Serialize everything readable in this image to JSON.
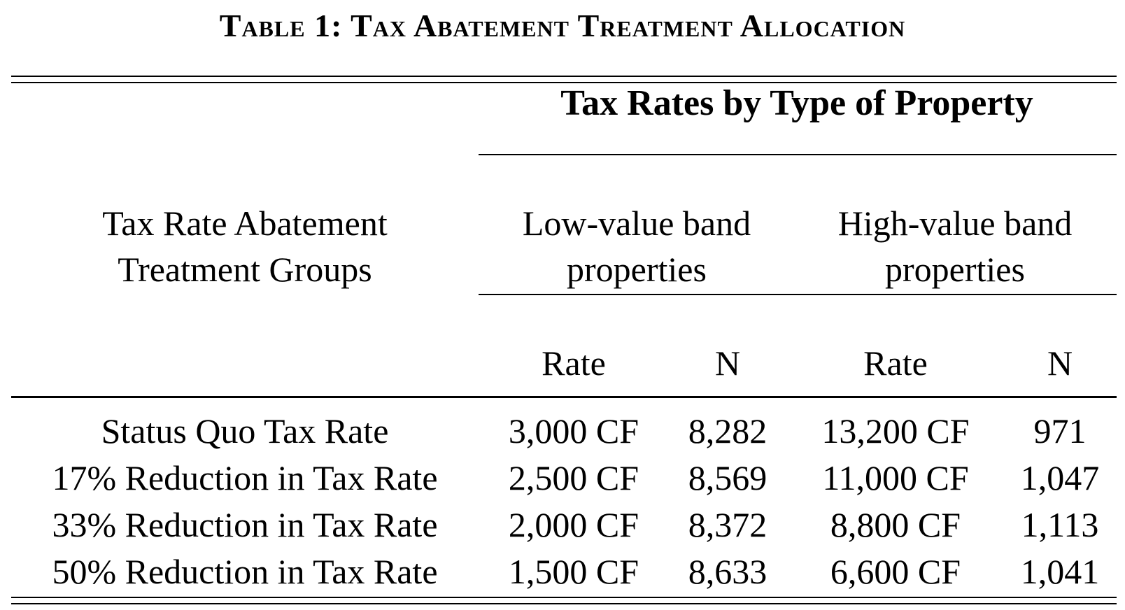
{
  "table": {
    "caption": "Table 1: Tax Abatement Treatment Allocation",
    "spanner": "Tax Rates by Type of Property",
    "row_header": [
      "Tax Rate Abatement",
      "Treatment Groups"
    ],
    "groups": [
      {
        "label": [
          "Low-value band",
          "properties"
        ]
      },
      {
        "label": [
          "High-value band",
          "properties"
        ]
      }
    ],
    "subheaders": [
      "Rate",
      "N",
      "Rate",
      "N"
    ],
    "rows": [
      {
        "label": "Status Quo Tax Rate",
        "cells": [
          "3,000 CF",
          "8,282",
          "13,200 CF",
          "971"
        ]
      },
      {
        "label": "17% Reduction in Tax Rate",
        "cells": [
          "2,500 CF",
          "8,569",
          "11,000 CF",
          "1,047"
        ]
      },
      {
        "label": "33% Reduction in Tax Rate",
        "cells": [
          "2,000 CF",
          "8,372",
          "8,800 CF",
          "1,113"
        ]
      },
      {
        "label": "50% Reduction in Tax Rate",
        "cells": [
          "1,500 CF",
          "8,633",
          "6,600 CF",
          "1,041"
        ]
      }
    ]
  }
}
